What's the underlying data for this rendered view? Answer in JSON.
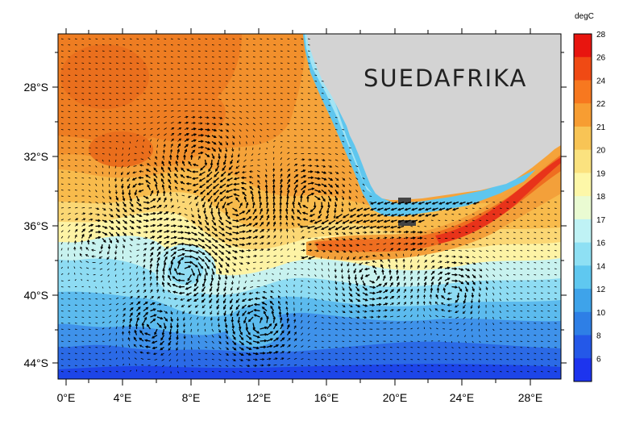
{
  "map": {
    "land_label": "SUEDAFRIKA",
    "land_color": "#d3d3d3",
    "latitude_labels": [
      "28°S",
      "32°S",
      "36°S",
      "40°S",
      "44°S"
    ],
    "longitude_labels": [
      "0°E",
      "4°E",
      "8°E",
      "12°E",
      "16°E",
      "20°E",
      "24°E",
      "28°E"
    ],
    "lon_range": [
      0,
      30
    ],
    "lat_range": [
      -45,
      -25
    ],
    "variable": "sea surface temperature with surface current vectors"
  },
  "colorbar": {
    "unit": "degC",
    "ticks": [
      "28",
      "26",
      "24",
      "22",
      "21",
      "20",
      "19",
      "18",
      "17",
      "16",
      "14",
      "12",
      "10",
      "8",
      "6"
    ],
    "colors": [
      "#e8150f",
      "#f04a14",
      "#f7781f",
      "#f79d32",
      "#f8c455",
      "#fbe27f",
      "#fdf7a8",
      "#eafbd2",
      "#bff2f5",
      "#8ee0f4",
      "#5fc8f0",
      "#3ea3ea",
      "#2e7fe6",
      "#2458e8",
      "#1d34ee"
    ]
  }
}
